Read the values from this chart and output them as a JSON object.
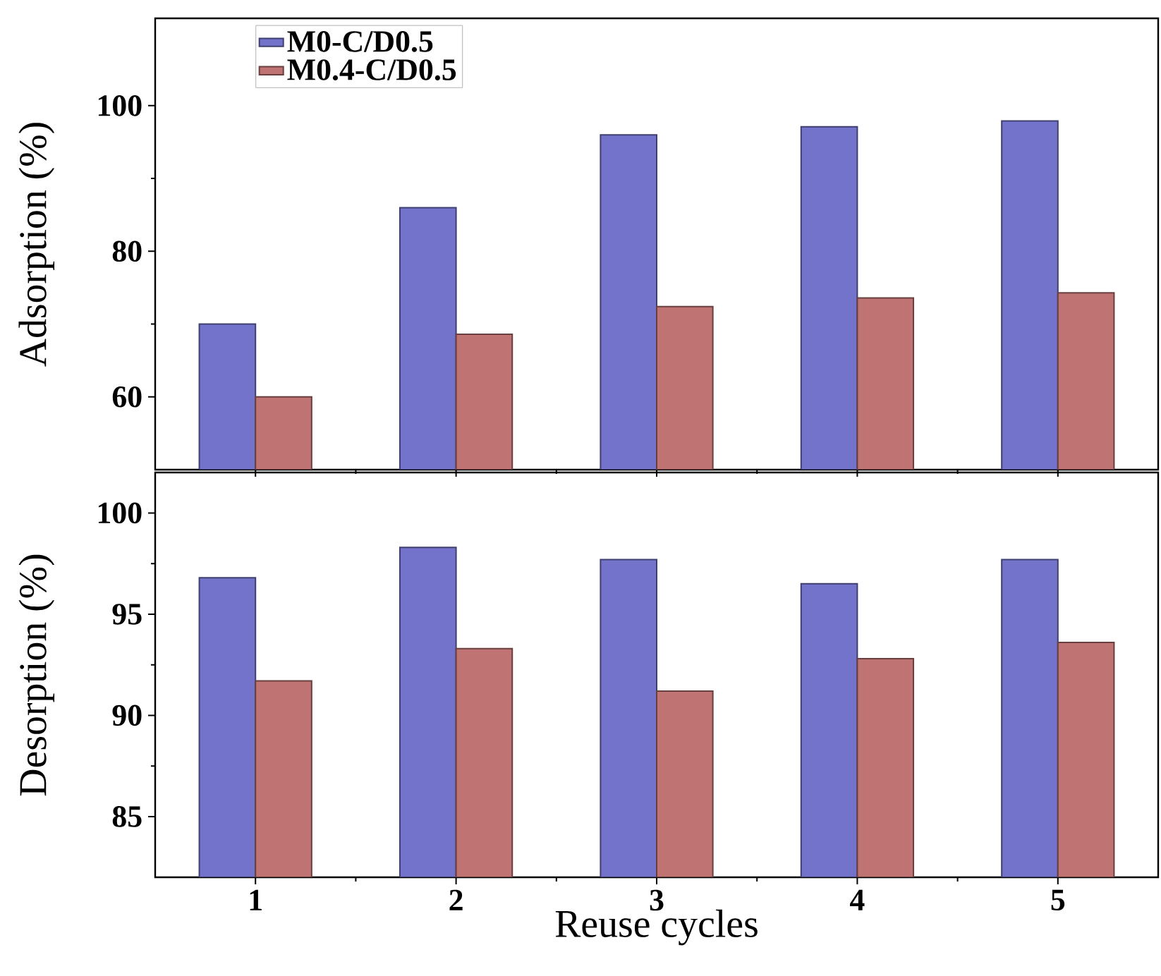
{
  "chart_data": [
    {
      "type": "bar",
      "ylabel": "Adsorption (%)",
      "categories": [
        "1",
        "2",
        "3",
        "4",
        "5"
      ],
      "ylim": [
        50,
        112
      ],
      "yticks": [
        60,
        80,
        100
      ],
      "tick_labels": "y",
      "legend": "top left",
      "series": [
        {
          "name": "M0-C/D0.5",
          "color": "#7373cb",
          "values": [
            70,
            86,
            96,
            97.1,
            97.9
          ]
        },
        {
          "name": "M0.4-C/D0.5",
          "color": "#bf7373",
          "values": [
            60,
            68.6,
            72.4,
            73.6,
            74.3
          ]
        }
      ]
    },
    {
      "type": "bar",
      "ylabel": "Desorption (%)",
      "xlabel": "Reuse cycles",
      "categories": [
        "1",
        "2",
        "3",
        "4",
        "5"
      ],
      "ylim": [
        82,
        102
      ],
      "yticks": [
        85,
        90,
        95,
        100
      ],
      "series": [
        {
          "color": "#7373cb",
          "values": [
            96.8,
            98.3,
            97.7,
            96.5,
            97.7
          ]
        },
        {
          "color": "#bf7373",
          "values": [
            91.7,
            93.3,
            91.2,
            92.8,
            93.6
          ]
        }
      ]
    }
  ]
}
